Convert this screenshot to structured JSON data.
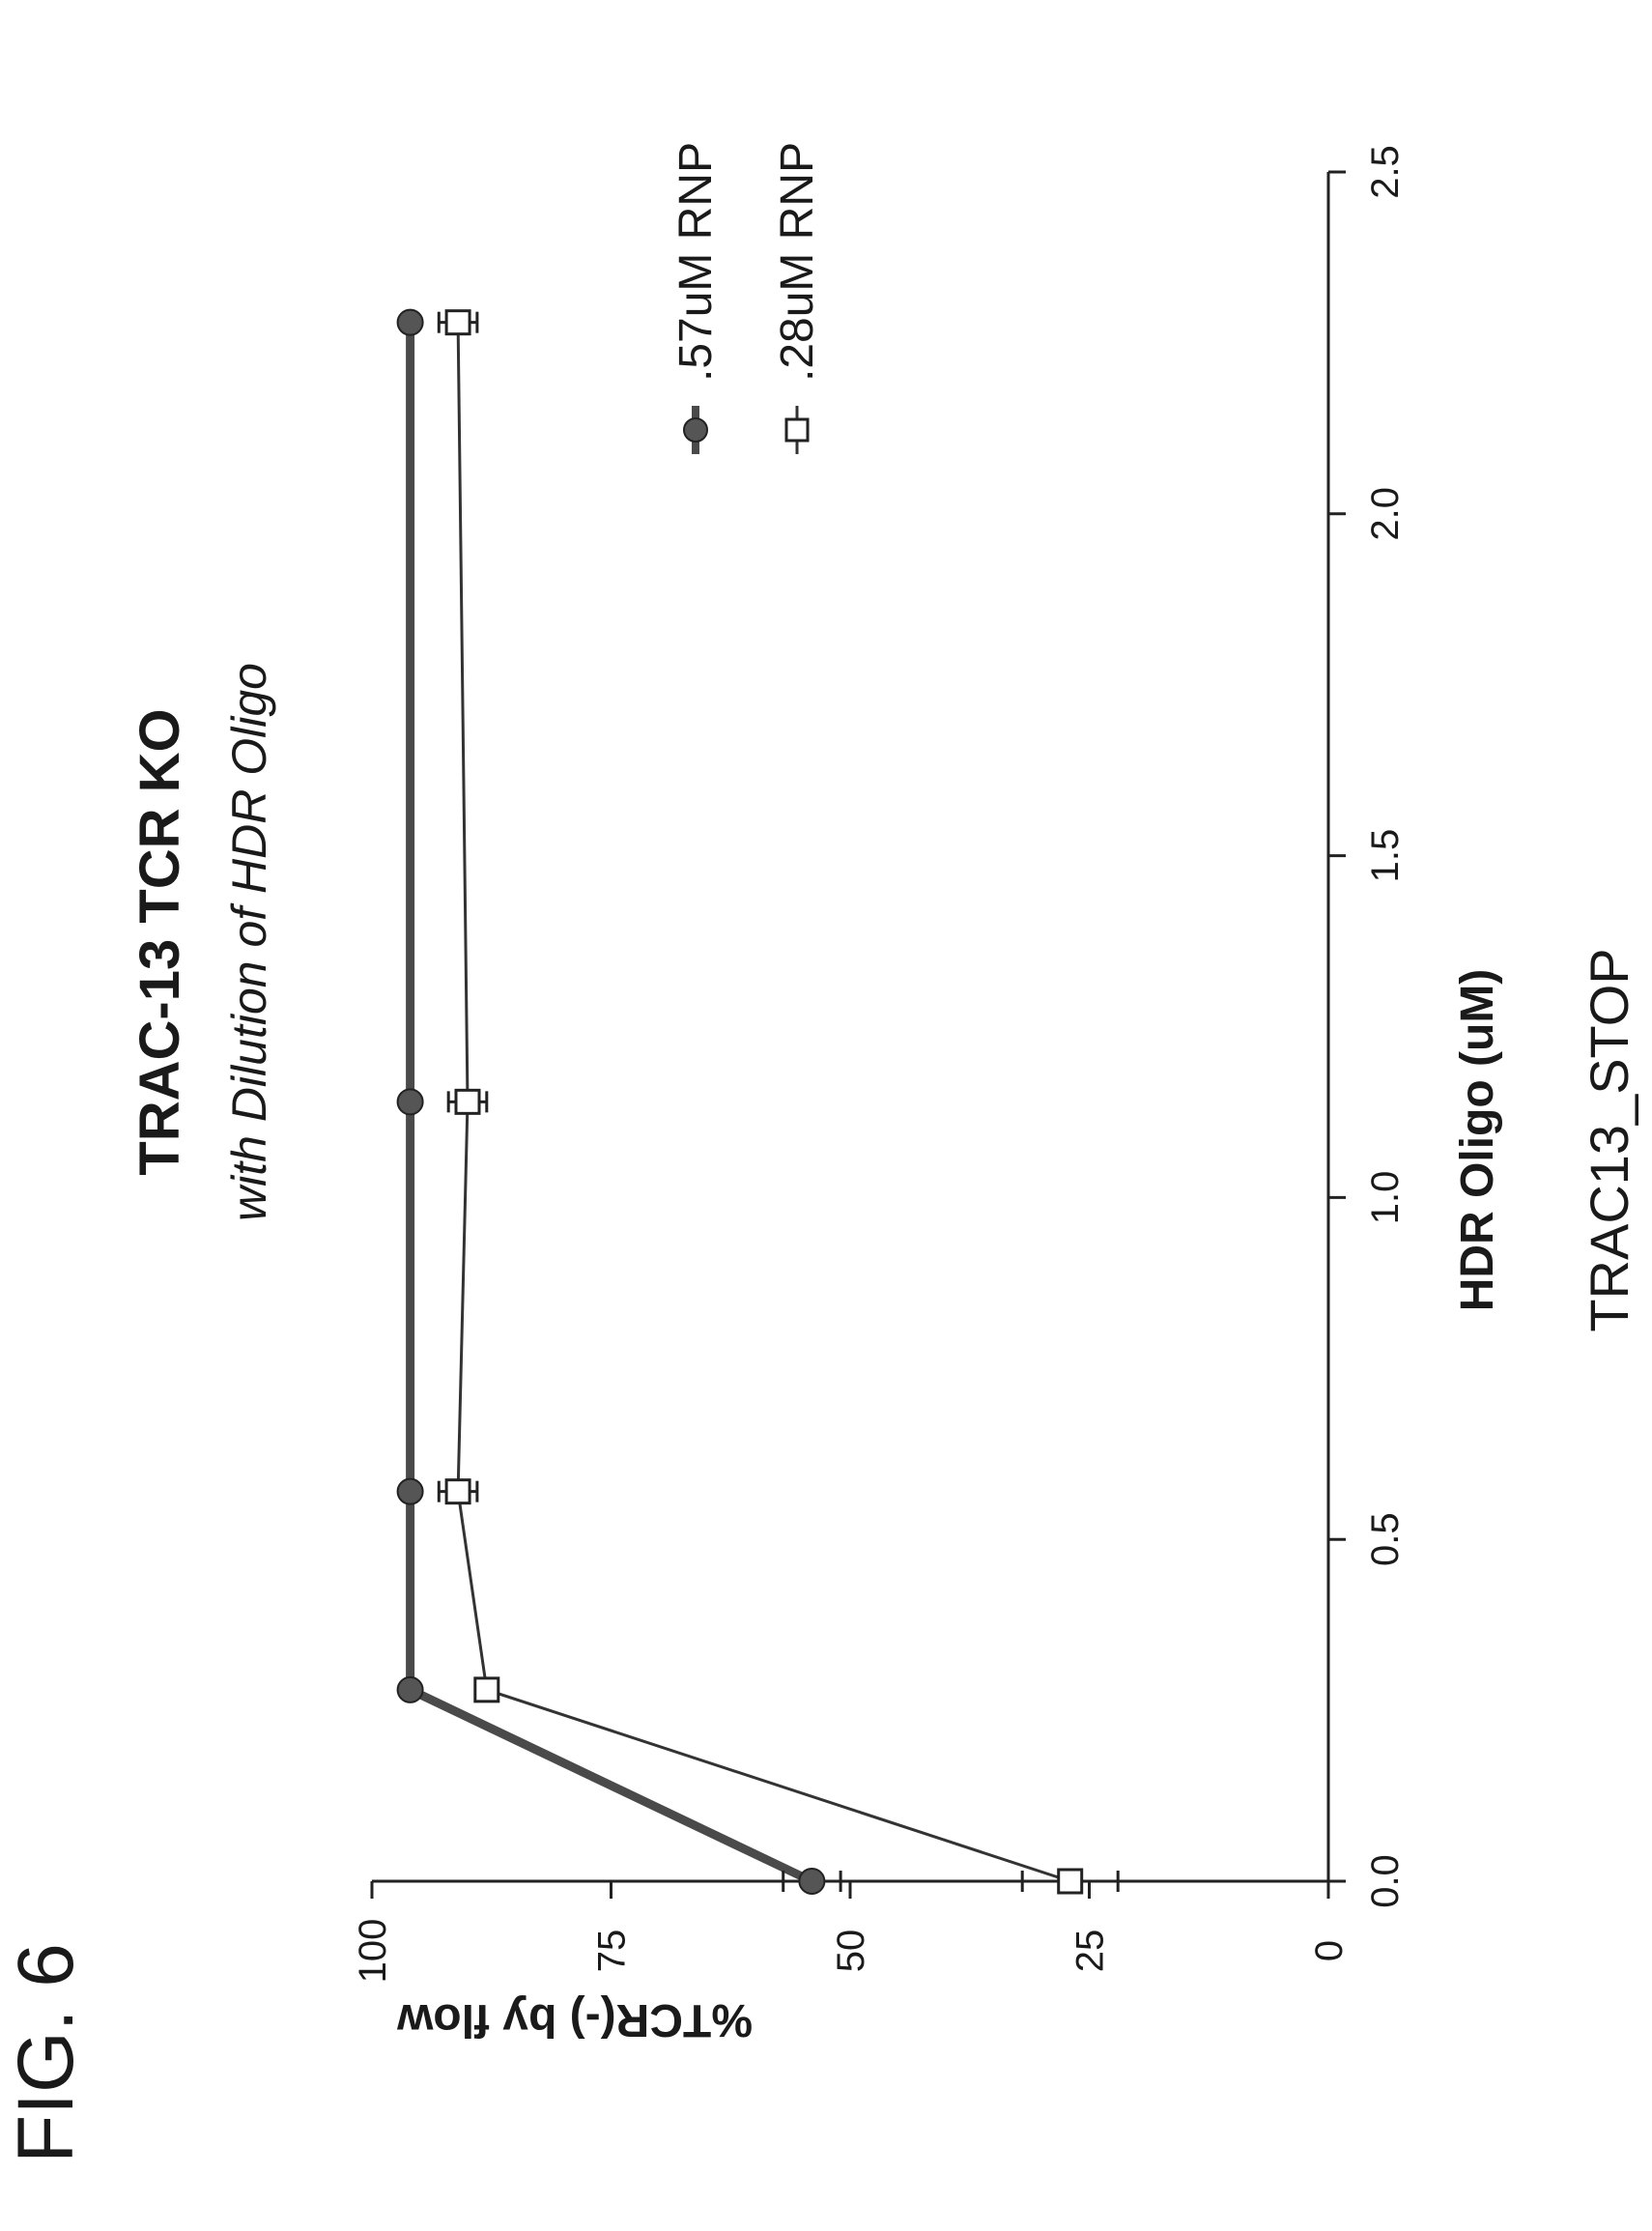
{
  "figure_label": "FIG. 6",
  "chart_data": {
    "type": "line",
    "title": "TRAC-13 TCR KO",
    "subtitle": "with Dilution of HDR Oligo",
    "xlabel": "HDR Oligo (uM)",
    "x_sublabel": "TRAC13_STOP",
    "ylabel": "%TCR(-) by flow",
    "xlim": [
      0,
      2.5
    ],
    "ylim": [
      0,
      100
    ],
    "x_ticks": [
      "0.0",
      "0.5",
      "1.0",
      "1.5",
      "2.0",
      "2.5"
    ],
    "y_ticks": [
      "0",
      "25",
      "50",
      "75",
      "100"
    ],
    "legend_position": "right",
    "series": [
      {
        "name": ".57uM RNP",
        "marker": "filled-circle",
        "color": "#4a4a4a",
        "x": [
          0,
          0.28,
          0.57,
          1.14,
          2.28
        ],
        "y": [
          54,
          96,
          96,
          96,
          96
        ],
        "err": [
          3,
          0,
          0,
          0,
          0
        ]
      },
      {
        "name": ".28uM RNP",
        "marker": "open-square",
        "color": "#333333",
        "x": [
          0,
          0.28,
          0.57,
          1.14,
          2.28
        ],
        "y": [
          27,
          88,
          91,
          90,
          91
        ],
        "err": [
          5,
          0,
          2,
          2,
          2
        ]
      }
    ]
  }
}
